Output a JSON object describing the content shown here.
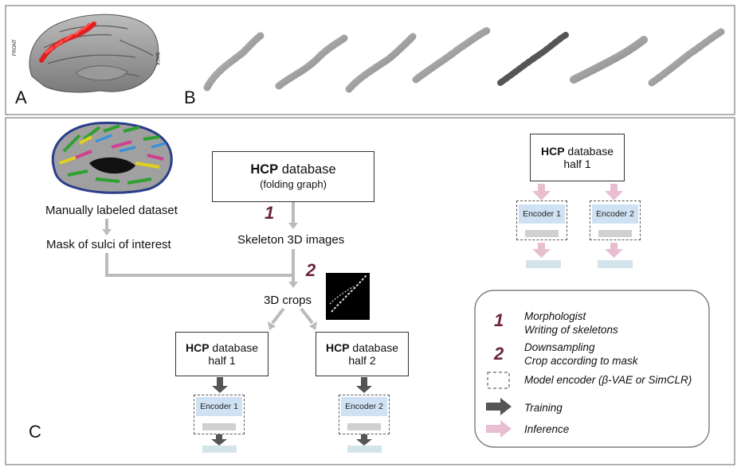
{
  "panels": {
    "a_label": "A",
    "b_label": "B",
    "c_label": "C",
    "brain_front": "FRONT",
    "brain_back": "BACK"
  },
  "flow": {
    "manual_dataset": "Manually labeled dataset",
    "mask": "Mask of sulci of interest",
    "hcp_main_bold": "HCP",
    "hcp_main_rest": " database",
    "hcp_main_sub": "(folding graph)",
    "step1": "1",
    "skeleton": "Skeleton 3D images",
    "step2": "2",
    "crops": "3D crops",
    "half1_bold": "HCP",
    "half1_rest": " database",
    "half1_sub": "half 1",
    "half2_bold": "HCP",
    "half2_rest": " database",
    "half2_sub": "half 2",
    "encoder1": "Encoder 1",
    "encoder2": "Encoder 2"
  },
  "inference": {
    "hcp_bold": "HCP",
    "hcp_rest": " database",
    "hcp_sub": "half 1",
    "encoder1": "Encoder 1",
    "encoder2": "Encoder 2"
  },
  "legend": {
    "num1": "1",
    "line1a": "Morphologist",
    "line1b": "Writing of skeletons",
    "num2": "2",
    "line2a": "Downsampling",
    "line2b": "Crop according to mask",
    "encoder": "Model encoder (β-VAE or SimCLR)",
    "training": "Training",
    "inference": "Inference"
  },
  "colors": {
    "step_number": "#6b2340",
    "encoder_fill": "#cfe2f3",
    "output_bar": "#d3e4ea",
    "training_arrow": "#555555",
    "inference_arrow": "#e8bfd0",
    "process_arrow": "#bbbbbb",
    "sulcus_highlight": "#e02020"
  }
}
